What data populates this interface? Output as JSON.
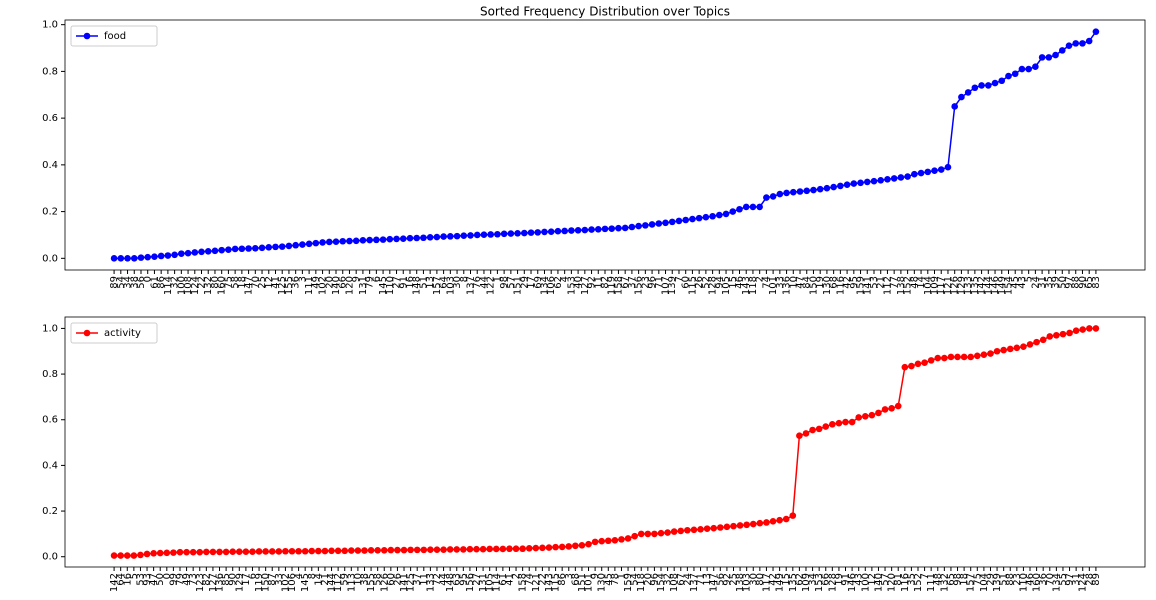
{
  "chart_data": [
    {
      "type": "line",
      "title": "Sorted Frequency Distribution over Topics",
      "legend": "upper left",
      "categories": [
        "89",
        "54",
        "34",
        "38",
        "56",
        "0",
        "61",
        "86",
        "114",
        "32",
        "100",
        "108",
        "124",
        "22",
        "132",
        "80",
        "160",
        "75",
        "58",
        "18",
        "147",
        "70",
        "25",
        "12",
        "41",
        "125",
        "155",
        "36",
        "3",
        "111",
        "49",
        "102",
        "20",
        "140",
        "66",
        "120",
        "9",
        "131",
        "79",
        "6",
        "145",
        "110",
        "27",
        "91",
        "16",
        "148",
        "51",
        "13",
        "157",
        "64",
        "103",
        "30",
        "8",
        "137",
        "76",
        "44",
        "122",
        "1",
        "98",
        "57",
        "151",
        "29",
        "17",
        "69",
        "134",
        "106",
        "62",
        "4",
        "153",
        "40",
        "127",
        "92",
        "11",
        "82",
        "119",
        "158",
        "67",
        "37",
        "156",
        "23",
        "96",
        "71",
        "107",
        "139",
        "7",
        "60",
        "115",
        "26",
        "52",
        "128",
        "94",
        "105",
        "15",
        "46",
        "143",
        "118",
        "2",
        "74",
        "101",
        "33",
        "136",
        "10",
        "47",
        "84",
        "150",
        "19",
        "130",
        "68",
        "116",
        "42",
        "95",
        "159",
        "141",
        "53",
        "21",
        "112",
        "77",
        "138",
        "152",
        "48",
        "14",
        "104",
        "109",
        "117",
        "121",
        "126",
        "129",
        "133",
        "135",
        "142",
        "144",
        "146",
        "149",
        "154",
        "45",
        "43",
        "5",
        "24",
        "31",
        "35",
        "39",
        "50",
        "97",
        "88",
        "90",
        "65",
        "83"
      ],
      "series": [
        {
          "name": "food",
          "color": "#0000ff",
          "values": [
            0,
            0,
            0,
            0,
            0.003,
            0.005,
            0.007,
            0.01,
            0.012,
            0.015,
            0.02,
            0.022,
            0.025,
            0.028,
            0.03,
            0.032,
            0.035,
            0.037,
            0.04,
            0.041,
            0.042,
            0.043,
            0.045,
            0.047,
            0.049,
            0.05,
            0.053,
            0.056,
            0.059,
            0.062,
            0.065,
            0.068,
            0.07,
            0.071,
            0.073,
            0.074,
            0.075,
            0.077,
            0.078,
            0.079,
            0.08,
            0.082,
            0.083,
            0.084,
            0.086,
            0.087,
            0.088,
            0.09,
            0.091,
            0.093,
            0.094,
            0.095,
            0.097,
            0.098,
            0.1,
            0.101,
            0.102,
            0.103,
            0.105,
            0.106,
            0.107,
            0.108,
            0.11,
            0.111,
            0.113,
            0.114,
            0.116,
            0.117,
            0.119,
            0.12,
            0.121,
            0.123,
            0.124,
            0.126,
            0.127,
            0.129,
            0.13,
            0.134,
            0.138,
            0.141,
            0.145,
            0.149,
            0.152,
            0.156,
            0.16,
            0.164,
            0.168,
            0.172,
            0.176,
            0.18,
            0.185,
            0.19,
            0.2,
            0.21,
            0.22,
            0.22,
            0.22,
            0.26,
            0.265,
            0.275,
            0.28,
            0.283,
            0.286,
            0.289,
            0.292,
            0.296,
            0.3,
            0.305,
            0.31,
            0.315,
            0.32,
            0.323,
            0.327,
            0.33,
            0.334,
            0.338,
            0.342,
            0.346,
            0.35,
            0.36,
            0.365,
            0.37,
            0.375,
            0.38,
            0.39,
            0.65,
            0.69,
            0.71,
            0.73,
            0.74,
            0.74,
            0.75,
            0.76,
            0.78,
            0.79,
            0.81,
            0.81,
            0.82,
            0.86,
            0.86,
            0.87,
            0.89,
            0.91,
            0.92,
            0.92,
            0.93,
            0.97
          ]
        }
      ],
      "ylim": [
        -0.05,
        1.02
      ],
      "yticks": [
        {
          "value": 0,
          "label": "0.0"
        },
        0.2,
        0.4,
        0.6,
        0.8,
        {
          "value": 1,
          "label": "1.0"
        }
      ]
    },
    {
      "type": "line",
      "legend": "upper left",
      "categories": [
        "142",
        "64",
        "16",
        "5",
        "53",
        "93",
        "47",
        "50",
        "0",
        "99",
        "79",
        "49",
        "73",
        "123",
        "82",
        "127",
        "136",
        "85",
        "90",
        "129",
        "17",
        "6",
        "119",
        "150",
        "87",
        "33",
        "102",
        "106",
        "4",
        "145",
        "8",
        "14",
        "21",
        "144",
        "112",
        "59",
        "113",
        "10",
        "38",
        "155",
        "58",
        "126",
        "60",
        "26",
        "141",
        "125",
        "37",
        "11",
        "133",
        "72",
        "44",
        "148",
        "63",
        "95",
        "156",
        "27",
        "131",
        "105",
        "114",
        "61",
        "41",
        "2",
        "158",
        "74",
        "121",
        "22",
        "143",
        "115",
        "86",
        "3",
        "68",
        "151",
        "101",
        "9",
        "130",
        "45",
        "78",
        "1",
        "159",
        "54",
        "118",
        "20",
        "96",
        "154",
        "32",
        "108",
        "67",
        "24",
        "137",
        "71",
        "13",
        "147",
        "56",
        "92",
        "25",
        "138",
        "103",
        "30",
        "80",
        "117",
        "42",
        "149",
        "15",
        "135",
        "62",
        "109",
        "34",
        "153",
        "66",
        "128",
        "19",
        "91",
        "146",
        "43",
        "100",
        "12",
        "140",
        "57",
        "120",
        "81",
        "116",
        "35",
        "152",
        "7",
        "111",
        "48",
        "132",
        "65",
        "98",
        "18",
        "157",
        "75",
        "104",
        "29",
        "139",
        "51",
        "88",
        "23",
        "110",
        "46",
        "160",
        "36",
        "70",
        "134",
        "55",
        "97",
        "31",
        "124",
        "28",
        "89"
      ],
      "series": [
        {
          "name": "activity",
          "color": "#ff0000",
          "values": [
            0.005,
            0.005,
            0.005,
            0.005,
            0.008,
            0.012,
            0.015,
            0.016,
            0.017,
            0.018,
            0.02,
            0.02,
            0.02,
            0.02,
            0.021,
            0.021,
            0.021,
            0.021,
            0.022,
            0.022,
            0.022,
            0.022,
            0.023,
            0.023,
            0.023,
            0.023,
            0.024,
            0.024,
            0.024,
            0.024,
            0.025,
            0.025,
            0.025,
            0.026,
            0.026,
            0.026,
            0.027,
            0.027,
            0.027,
            0.028,
            0.028,
            0.028,
            0.029,
            0.029,
            0.029,
            0.03,
            0.03,
            0.03,
            0.031,
            0.031,
            0.031,
            0.032,
            0.032,
            0.032,
            0.033,
            0.033,
            0.033,
            0.034,
            0.034,
            0.034,
            0.035,
            0.035,
            0.035,
            0.037,
            0.038,
            0.039,
            0.04,
            0.042,
            0.043,
            0.045,
            0.048,
            0.05,
            0.055,
            0.065,
            0.068,
            0.07,
            0.072,
            0.076,
            0.08,
            0.09,
            0.1,
            0.1,
            0.1,
            0.103,
            0.106,
            0.11,
            0.113,
            0.116,
            0.118,
            0.12,
            0.123,
            0.125,
            0.128,
            0.131,
            0.134,
            0.137,
            0.14,
            0.143,
            0.147,
            0.15,
            0.155,
            0.16,
            0.165,
            0.18,
            0.53,
            0.54,
            0.555,
            0.56,
            0.57,
            0.58,
            0.585,
            0.59,
            0.59,
            0.61,
            0.615,
            0.62,
            0.63,
            0.645,
            0.65,
            0.66,
            0.83,
            0.835,
            0.845,
            0.85,
            0.86,
            0.87,
            0.87,
            0.875,
            0.875,
            0.875,
            0.875,
            0.88,
            0.885,
            0.89,
            0.9,
            0.905,
            0.91,
            0.915,
            0.92,
            0.93,
            0.94,
            0.95,
            0.965,
            0.97,
            0.975,
            0.98,
            0.99,
            0.995,
            1.0,
            1.0
          ]
        }
      ],
      "ylim": [
        -0.045,
        1.05
      ],
      "yticks": [
        {
          "value": 0,
          "label": "0.0"
        },
        0.2,
        0.4,
        0.6,
        0.8,
        {
          "value": 1,
          "label": "1.0"
        }
      ]
    }
  ]
}
